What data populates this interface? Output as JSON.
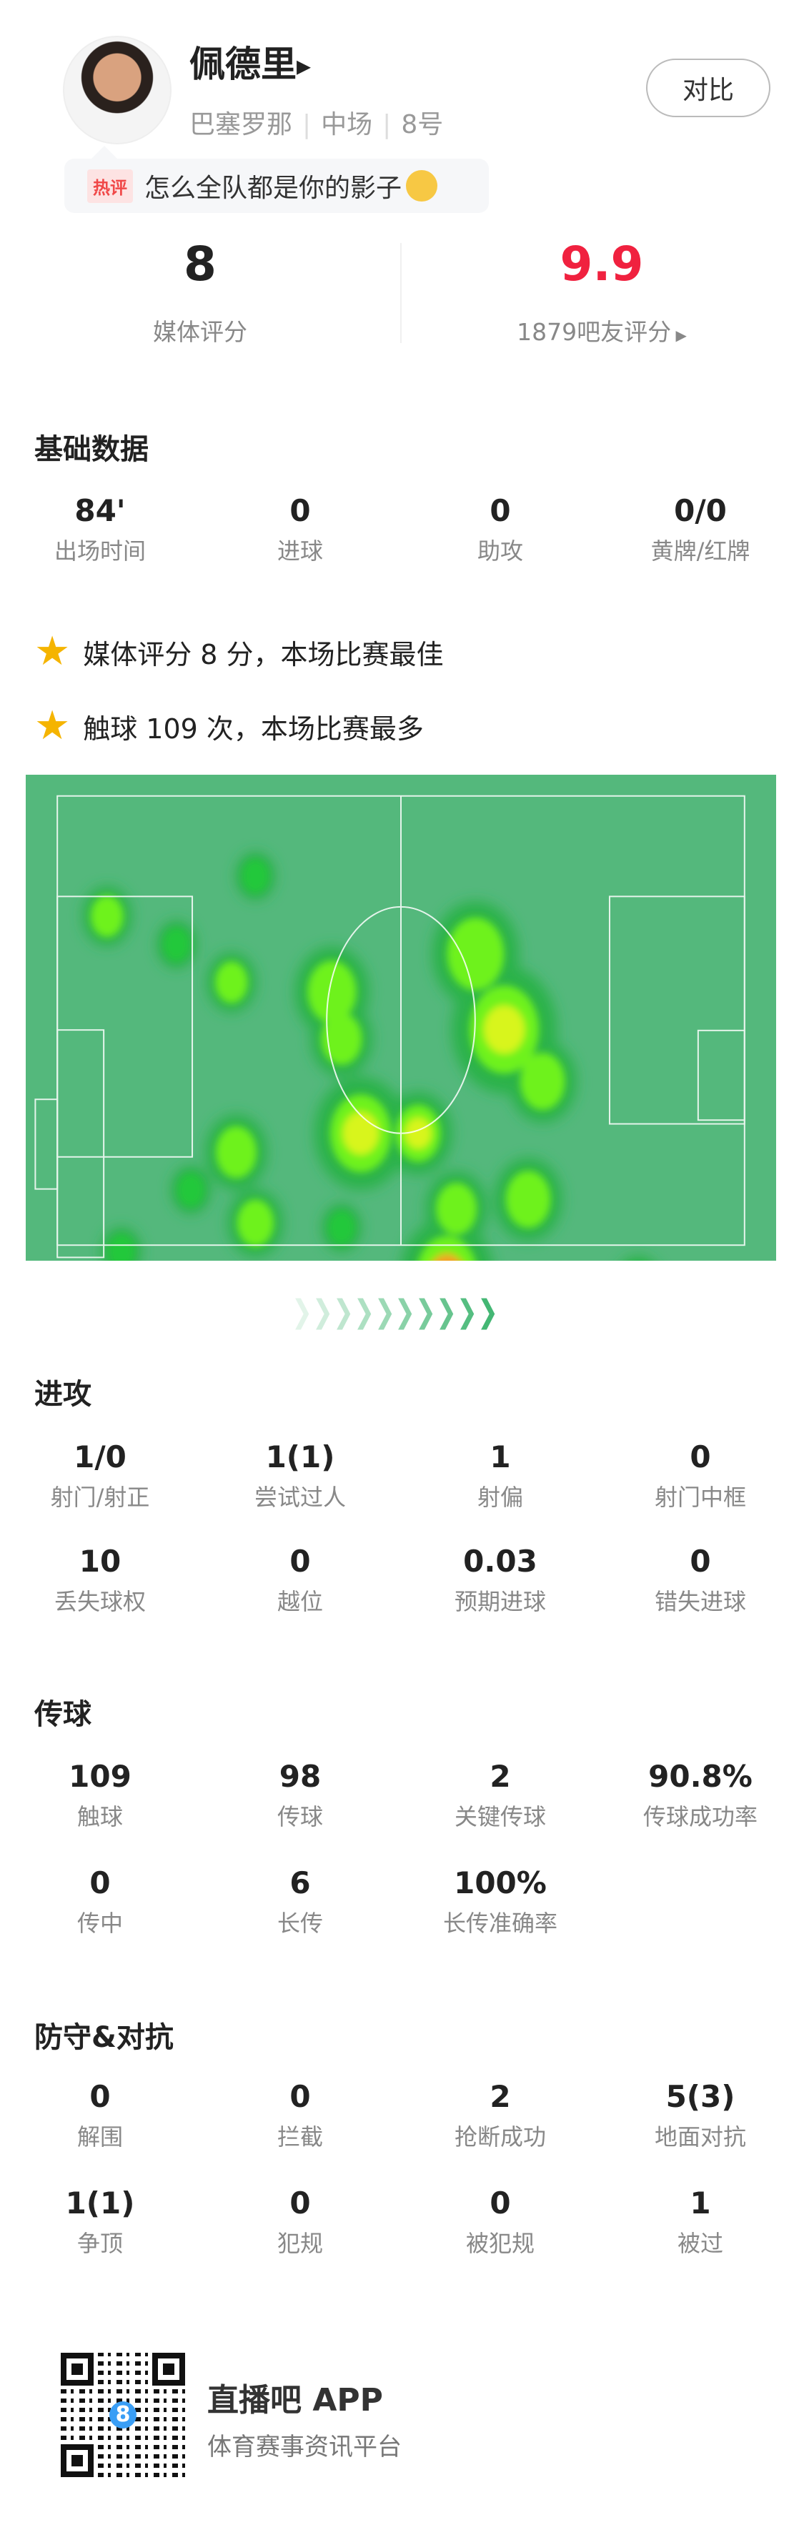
{
  "player": {
    "name": "佩德里",
    "team": "巴塞罗那",
    "position": "中场",
    "number": "8号",
    "compare_label": "对比"
  },
  "hot_comment": {
    "tag": "热评",
    "text": "怎么全队都是你的影子"
  },
  "ratings": {
    "media_score": "8",
    "media_label": "媒体评分",
    "fan_score": "9.9",
    "fan_label": "1879吧友评分",
    "fan_color": "#f0213f"
  },
  "basic": {
    "title": "基础数据",
    "stats": [
      {
        "value": "84'",
        "label": "出场时间"
      },
      {
        "value": "0",
        "label": "进球"
      },
      {
        "value": "0",
        "label": "助攻"
      },
      {
        "value": "0/0",
        "label": "黄牌/红牌"
      }
    ]
  },
  "highlights": [
    "媒体评分 8 分，本场比赛最佳",
    "触球 109 次，本场比赛最多"
  ],
  "heatmap": {
    "pitch_color": "#54b87c"
  },
  "attack": {
    "title": "进攻",
    "rows": [
      [
        {
          "value": "1/0",
          "label": "射门/射正"
        },
        {
          "value": "1(1)",
          "label": "尝试过人"
        },
        {
          "value": "1",
          "label": "射偏"
        },
        {
          "value": "0",
          "label": "射门中框"
        }
      ],
      [
        {
          "value": "10",
          "label": "丢失球权"
        },
        {
          "value": "0",
          "label": "越位"
        },
        {
          "value": "0.03",
          "label": "预期进球"
        },
        {
          "value": "0",
          "label": "错失进球"
        }
      ]
    ]
  },
  "passing": {
    "title": "传球",
    "rows": [
      [
        {
          "value": "109",
          "label": "触球"
        },
        {
          "value": "98",
          "label": "传球"
        },
        {
          "value": "2",
          "label": "关键传球"
        },
        {
          "value": "90.8%",
          "label": "传球成功率"
        }
      ],
      [
        {
          "value": "0",
          "label": "传中"
        },
        {
          "value": "6",
          "label": "长传"
        },
        {
          "value": "100%",
          "label": "长传准确率"
        }
      ]
    ]
  },
  "defense": {
    "title": "防守&对抗",
    "rows": [
      [
        {
          "value": "0",
          "label": "解围"
        },
        {
          "value": "0",
          "label": "拦截"
        },
        {
          "value": "2",
          "label": "抢断成功"
        },
        {
          "value": "5(3)",
          "label": "地面对抗"
        }
      ],
      [
        {
          "value": "1(1)",
          "label": "争顶"
        },
        {
          "value": "0",
          "label": "犯规"
        },
        {
          "value": "0",
          "label": "被犯规"
        },
        {
          "value": "1",
          "label": "被过"
        }
      ]
    ]
  },
  "footer": {
    "app_name": "直播吧 APP",
    "slogan": "体育赛事资讯平台",
    "qr_badge": "8"
  }
}
